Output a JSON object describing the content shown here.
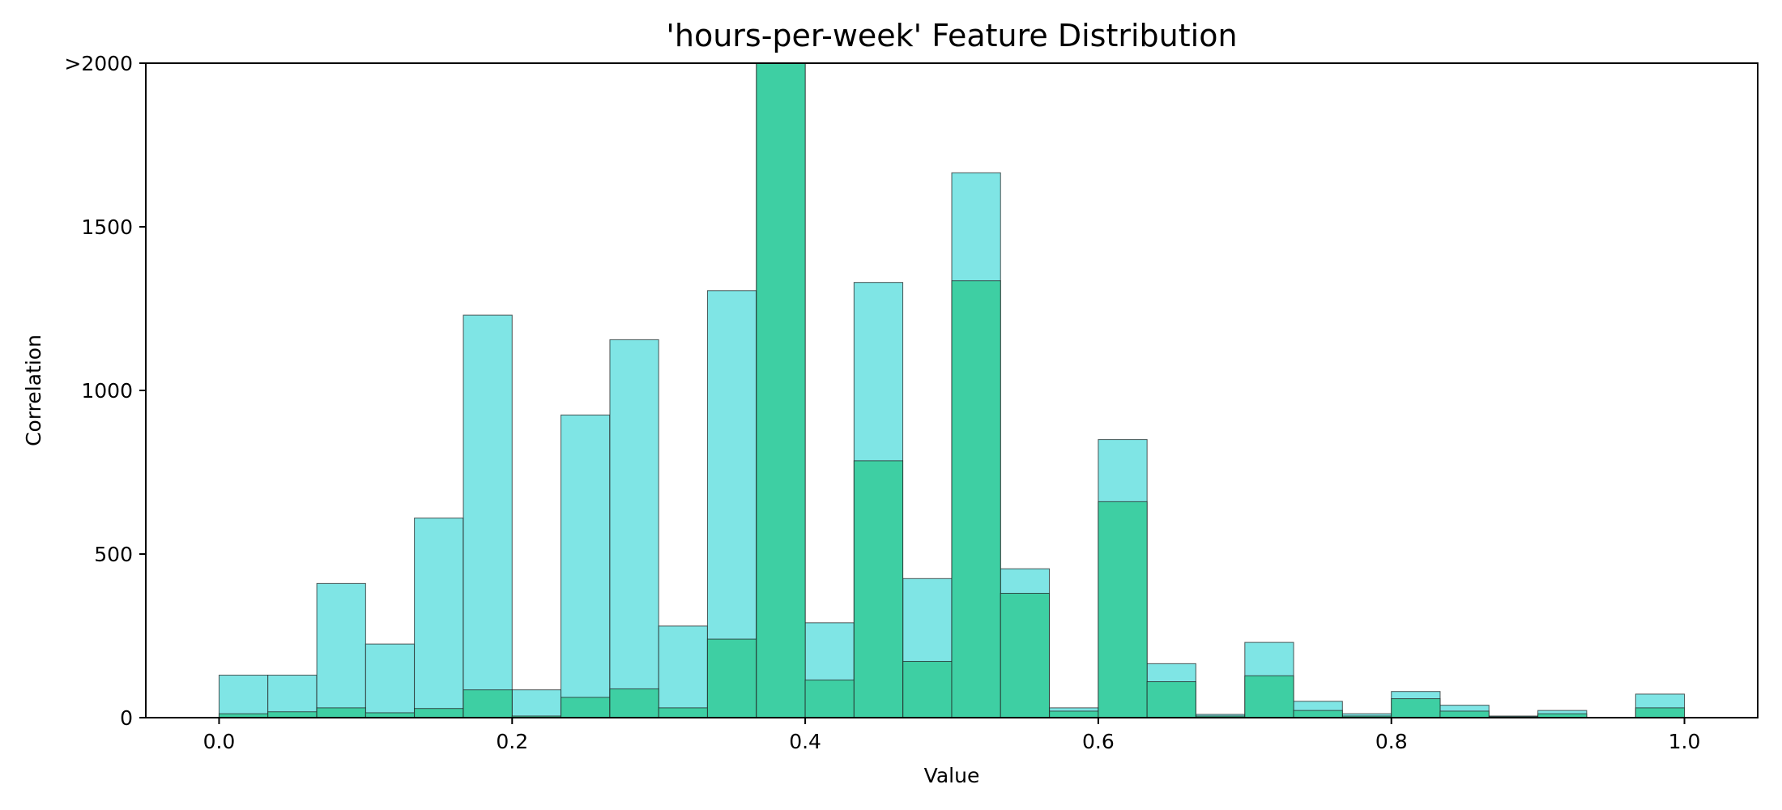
{
  "chart_data": {
    "type": "bar",
    "title": "'hours-per-week' Feature Distribution",
    "xlabel": "Value",
    "ylabel": "Correlation",
    "xlim": [
      -0.05,
      1.05
    ],
    "ylim": [
      0,
      2000
    ],
    "x_ticks": [
      {
        "value": 0.0,
        "label": "0.0"
      },
      {
        "value": 0.2,
        "label": "0.2"
      },
      {
        "value": 0.4,
        "label": "0.4"
      },
      {
        "value": 0.6,
        "label": "0.6"
      },
      {
        "value": 0.8,
        "label": "0.8"
      },
      {
        "value": 1.0,
        "label": "1.0"
      }
    ],
    "y_ticks": [
      {
        "value": 0,
        "label": "0"
      },
      {
        "value": 500,
        "label": "500"
      },
      {
        "value": 1000,
        "label": "1000"
      },
      {
        "value": 1500,
        "label": "1500"
      },
      {
        "value": 2000,
        "label": ">2000"
      }
    ],
    "grid": false,
    "bins": [
      0.0,
      0.0333,
      0.0667,
      0.1,
      0.1333,
      0.1667,
      0.2,
      0.2333,
      0.2667,
      0.3,
      0.3333,
      0.3667,
      0.4,
      0.4333,
      0.4667,
      0.5,
      0.5333,
      0.5667,
      0.6,
      0.6333,
      0.6667,
      0.7,
      0.7333,
      0.7667,
      0.8,
      0.8333,
      0.8667,
      0.9,
      0.9333,
      0.9667
    ],
    "bin_width": 0.0333,
    "series": [
      {
        "color": "#7fe5e5",
        "values": [
          130,
          130,
          410,
          225,
          610,
          1230,
          85,
          925,
          1155,
          280,
          1305,
          2000,
          290,
          1330,
          425,
          1665,
          455,
          30,
          850,
          165,
          10,
          230,
          50,
          12,
          80,
          38,
          5,
          22,
          0,
          72
        ]
      },
      {
        "color": "#3ecfa3",
        "values": [
          12,
          18,
          30,
          15,
          28,
          85,
          5,
          62,
          88,
          30,
          240,
          2000,
          115,
          785,
          172,
          1335,
          380,
          20,
          660,
          110,
          5,
          128,
          22,
          5,
          58,
          20,
          3,
          12,
          0,
          30
        ]
      }
    ]
  }
}
